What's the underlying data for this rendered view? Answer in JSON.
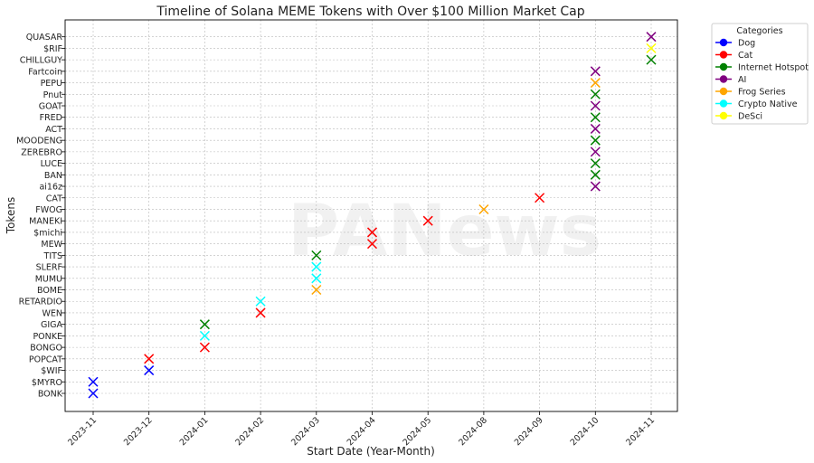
{
  "chart_data": {
    "type": "scatter",
    "title": "Timeline of Solana MEME Tokens with Over $100 Million Market Cap",
    "xlabel": "Start Date (Year-Month)",
    "ylabel": "Tokens",
    "grid": true,
    "legend_placement": "outside-top-right",
    "x_categories": [
      "2023-11",
      "2023-12",
      "2024-01",
      "2024-02",
      "2024-03",
      "2024-04",
      "2024-05",
      "2024-08",
      "2024-09",
      "2024-10",
      "2024-11"
    ],
    "y_categories": [
      "BONK",
      "$MYRO",
      "$WIF",
      "POPCAT",
      "BONGO",
      "PONKE",
      "GIGA",
      "WEN",
      "RETARDIO",
      "BOME",
      "MUMU",
      "SLERF",
      "TITS",
      "MEW",
      "$michi",
      "MANEKI",
      "FWOG",
      "CAT",
      "ai16z",
      "BAN",
      "LUCE",
      "ZEREBRO",
      "MOODENG",
      "ACT",
      "FRED",
      "GOAT",
      "Pnut",
      "PEPU",
      "Fartcoin",
      "CHILLGUY",
      "$RIF",
      "QUASAR"
    ],
    "legend_title": "Categories",
    "series": [
      {
        "name": "Dog",
        "color": "#0000ff"
      },
      {
        "name": "Cat",
        "color": "#ff0000"
      },
      {
        "name": "Internet Hotspot",
        "color": "#008000"
      },
      {
        "name": "AI",
        "color": "#800080"
      },
      {
        "name": "Frog Series",
        "color": "#ffa500"
      },
      {
        "name": "Crypto Native",
        "color": "#00ffff"
      },
      {
        "name": "DeSci",
        "color": "#ffff00"
      }
    ],
    "points": [
      {
        "token": "BONK",
        "date": "2023-11",
        "category": "Dog"
      },
      {
        "token": "$MYRO",
        "date": "2023-11",
        "category": "Dog"
      },
      {
        "token": "$WIF",
        "date": "2023-12",
        "category": "Dog"
      },
      {
        "token": "POPCAT",
        "date": "2023-12",
        "category": "Cat"
      },
      {
        "token": "BONGO",
        "date": "2024-01",
        "category": "Cat"
      },
      {
        "token": "PONKE",
        "date": "2024-01",
        "category": "Crypto Native"
      },
      {
        "token": "GIGA",
        "date": "2024-01",
        "category": "Internet Hotspot"
      },
      {
        "token": "WEN",
        "date": "2024-02",
        "category": "Cat"
      },
      {
        "token": "RETARDIO",
        "date": "2024-02",
        "category": "Crypto Native"
      },
      {
        "token": "BOME",
        "date": "2024-03",
        "category": "Frog Series"
      },
      {
        "token": "MUMU",
        "date": "2024-03",
        "category": "Crypto Native"
      },
      {
        "token": "SLERF",
        "date": "2024-03",
        "category": "Crypto Native"
      },
      {
        "token": "TITS",
        "date": "2024-03",
        "category": "Internet Hotspot"
      },
      {
        "token": "MEW",
        "date": "2024-04",
        "category": "Cat"
      },
      {
        "token": "$michi",
        "date": "2024-04",
        "category": "Cat"
      },
      {
        "token": "MANEKI",
        "date": "2024-05",
        "category": "Cat"
      },
      {
        "token": "FWOG",
        "date": "2024-08",
        "category": "Frog Series"
      },
      {
        "token": "CAT",
        "date": "2024-09",
        "category": "Cat"
      },
      {
        "token": "ai16z",
        "date": "2024-10",
        "category": "AI"
      },
      {
        "token": "BAN",
        "date": "2024-10",
        "category": "Internet Hotspot"
      },
      {
        "token": "LUCE",
        "date": "2024-10",
        "category": "Internet Hotspot"
      },
      {
        "token": "ZEREBRO",
        "date": "2024-10",
        "category": "AI"
      },
      {
        "token": "MOODENG",
        "date": "2024-10",
        "category": "Internet Hotspot"
      },
      {
        "token": "ACT",
        "date": "2024-10",
        "category": "AI"
      },
      {
        "token": "FRED",
        "date": "2024-10",
        "category": "Internet Hotspot"
      },
      {
        "token": "GOAT",
        "date": "2024-10",
        "category": "AI"
      },
      {
        "token": "Pnut",
        "date": "2024-10",
        "category": "Internet Hotspot"
      },
      {
        "token": "PEPU",
        "date": "2024-10",
        "category": "Frog Series"
      },
      {
        "token": "Fartcoin",
        "date": "2024-10",
        "category": "AI"
      },
      {
        "token": "CHILLGUY",
        "date": "2024-11",
        "category": "Internet Hotspot"
      },
      {
        "token": "$RIF",
        "date": "2024-11",
        "category": "DeSci"
      },
      {
        "token": "QUASAR",
        "date": "2024-11",
        "category": "AI"
      }
    ]
  },
  "watermark": {
    "text": "PANews"
  }
}
